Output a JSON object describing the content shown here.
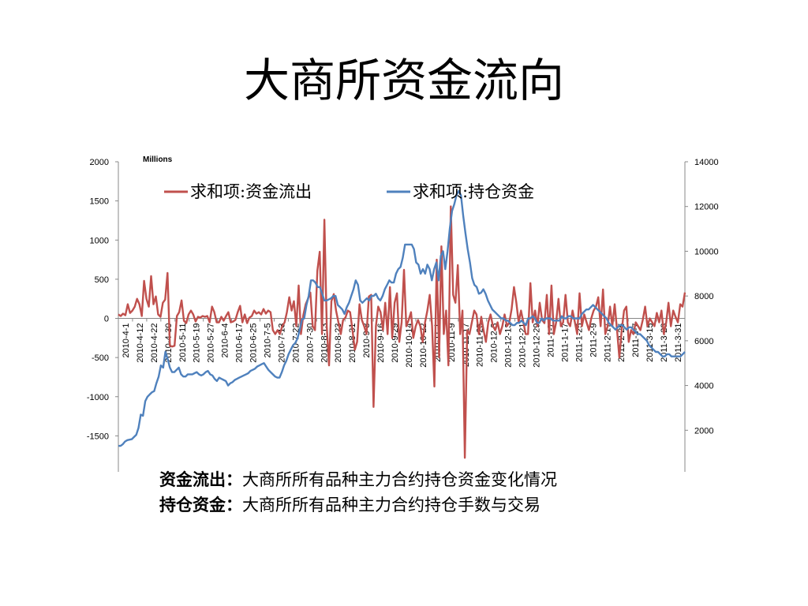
{
  "slide": {
    "title": "大商所资金流向",
    "notes": [
      {
        "term": "资金流出",
        "sep": "：",
        "text": "大商所所有品种主力合约持仓资金变化情况"
      },
      {
        "term": "持仓资金",
        "sep": "：",
        "text": "大商所所有品种主力合约持仓手数与交易"
      }
    ]
  },
  "chart_data": {
    "type": "line",
    "units_label": "Millions",
    "left_axis": {
      "min": -2000,
      "max": 2000,
      "ticks": [
        -2000,
        -1500,
        -1000,
        -500,
        0,
        500,
        1000,
        1500,
        2000
      ]
    },
    "right_axis": {
      "min": 0,
      "max": 14000,
      "ticks": [
        0,
        2000,
        4000,
        6000,
        8000,
        10000,
        12000,
        14000
      ]
    },
    "x_tick_labels": [
      "2010-4-1",
      "2010-4-12",
      "2010-4-22",
      "2010-4-30",
      "2010-5-11",
      "2010-5-19",
      "2010-5-27",
      "2010-6-4",
      "2010-6-17",
      "2010-6-25",
      "2010-7-5",
      "2010-7-13",
      "2010-7-22",
      "2010-7-30",
      "2010-8-13",
      "2010-8-23",
      "2010-8-31",
      "2010-9-8",
      "2010-9-16",
      "2010-9-29",
      "2010-10-14",
      "2010-10-22",
      "2010-11-1",
      "2010-11-9",
      "2010-11-17",
      "2010-11-25",
      "2010-12-3",
      "2010-12-13",
      "2010-12-21",
      "2010-12-29",
      "2011-1-7",
      "2011-1-17",
      "2011-1-25",
      "2011-2-9",
      "2011-2-17",
      "2011-2-25",
      "2011-3-7",
      "2011-3-15",
      "2011-3-23",
      "2011-3-31"
    ],
    "legend_position": "top",
    "grid": false,
    "series": [
      {
        "name": "求和项:资金流出",
        "axis": "left",
        "color": "#c0504d",
        "values": [
          50,
          30,
          60,
          40,
          180,
          70,
          100,
          150,
          250,
          180,
          30,
          480,
          250,
          150,
          540,
          180,
          280,
          50,
          20,
          200,
          240,
          580,
          -350,
          -360,
          -350,
          30,
          80,
          230,
          -30,
          -60,
          50,
          100,
          50,
          -40,
          20,
          10,
          30,
          20,
          30,
          -50,
          150,
          80,
          -50,
          -50,
          20,
          -30,
          30,
          80,
          -50,
          -40,
          -20,
          80,
          160,
          -50,
          50,
          -60,
          10,
          30,
          100,
          60,
          80,
          50,
          120,
          60,
          100,
          80,
          -150,
          -200,
          -150,
          -200,
          -100,
          -50,
          80,
          270,
          100,
          220,
          -100,
          420,
          -200,
          40,
          180,
          250,
          330,
          -100,
          -150,
          610,
          850,
          -200,
          1260,
          -100,
          -600,
          220,
          310,
          100,
          -50,
          -200,
          -20,
          10,
          100,
          80,
          -150,
          -400,
          -300,
          180,
          -20,
          -100,
          -200,
          280,
          300,
          -1130,
          -100,
          150,
          80,
          -150,
          200,
          -200,
          400,
          -250,
          200,
          320,
          -300,
          -50,
          620,
          -100,
          -20,
          80,
          -250,
          -100,
          -20,
          -100,
          -300,
          -50,
          100,
          300,
          -100,
          -870,
          750,
          -500,
          920,
          -200,
          100,
          -600,
          1430,
          300,
          200,
          680,
          -200,
          100,
          -1780,
          -150,
          -200,
          -50,
          100,
          50,
          -200,
          20,
          -150,
          -300,
          -50,
          50,
          -100,
          -150,
          -50,
          -200,
          -100,
          50,
          -100,
          -50,
          120,
          400,
          200,
          -50,
          100,
          -50,
          -200,
          -200,
          450,
          -50,
          100,
          -100,
          200,
          -20,
          -60,
          300,
          -200,
          420,
          -200,
          -50,
          250,
          -100,
          -50,
          300,
          -50,
          -100,
          100,
          -50,
          -200,
          320,
          -100,
          50,
          -50,
          -150,
          0,
          100,
          150,
          270,
          -100,
          370,
          -200,
          -100,
          150,
          -100,
          180,
          -150,
          -500,
          -150,
          100,
          150,
          -300,
          -150,
          -200,
          -50,
          -100,
          -150,
          -20,
          150,
          -100,
          0,
          -50,
          -100,
          70,
          -50,
          100,
          -200,
          -50,
          200,
          -100,
          100,
          20,
          -50,
          180,
          150,
          330
        ]
      },
      {
        "name": "求和项:持仓资金",
        "axis": "right",
        "color": "#4f81bd",
        "values": [
          1300,
          1300,
          1380,
          1500,
          1560,
          1580,
          1600,
          1700,
          1800,
          2100,
          2700,
          2650,
          3300,
          3500,
          3600,
          3700,
          3750,
          4100,
          4400,
          4900,
          4800,
          5500,
          5200,
          4800,
          4600,
          4600,
          4700,
          4800,
          4500,
          4400,
          4400,
          4500,
          4500,
          4500,
          4550,
          4600,
          4500,
          4450,
          4500,
          4600,
          4650,
          4500,
          4450,
          4300,
          4200,
          4350,
          4300,
          4250,
          4200,
          4000,
          4100,
          4150,
          4250,
          4300,
          4350,
          4400,
          4450,
          4500,
          4550,
          4650,
          4700,
          4750,
          4850,
          4900,
          4950,
          5000,
          4850,
          4700,
          4600,
          4500,
          4400,
          4350,
          4350,
          4600,
          4900,
          5100,
          5400,
          5600,
          5800,
          5900,
          6100,
          6500,
          6950,
          7000,
          7600,
          8000,
          8700,
          8700,
          8600,
          8400,
          8400,
          8100,
          7800,
          7800,
          7850,
          7900,
          8000,
          8000,
          7600,
          7500,
          7400,
          7200,
          7500,
          7700,
          8000,
          8300,
          8700,
          8500,
          7800,
          7700,
          7800,
          7900,
          7800,
          8000,
          8000,
          8100,
          7900,
          7800,
          8000,
          8300,
          8500,
          8700,
          8600,
          8600,
          9000,
          9200,
          9300,
          9700,
          10300,
          10300,
          10300,
          10300,
          10100,
          9500,
          9400,
          9000,
          9200,
          9000,
          9400,
          9200,
          8700,
          9200,
          9500,
          8700,
          9800,
          10000,
          9200,
          10000,
          11000,
          11800,
          12100,
          12500,
          12700,
          12500,
          11600,
          10800,
          10100,
          9500,
          8800,
          8500,
          8400,
          8100,
          8150,
          8300,
          8100,
          7800,
          7600,
          7400,
          7300,
          7200,
          7100,
          7000,
          7000,
          6900,
          6900,
          6800,
          6700,
          6700,
          6800,
          6800,
          6900,
          6800,
          6700,
          7000,
          7000,
          7100,
          7000,
          6800,
          6800,
          7000,
          6900,
          7000,
          7000,
          7000,
          6900,
          6900,
          6900,
          6900,
          7100,
          7000,
          7000,
          7100,
          7100,
          7000,
          7000,
          7000,
          7000,
          7200,
          7300,
          7400,
          7400,
          7500,
          7600,
          7500,
          7400,
          7300,
          7200,
          7100,
          7000,
          6800,
          6700,
          6600,
          6500,
          6600,
          6700,
          6700,
          6600,
          6500,
          6600,
          6600,
          6500,
          6400,
          6300,
          6300,
          6200,
          6100,
          6000,
          5800,
          5700,
          5600,
          5500,
          5500,
          5400,
          5300,
          5300,
          5400,
          5400,
          5300,
          5300,
          5300,
          5300,
          5300,
          5400,
          5500
        ]
      }
    ]
  }
}
